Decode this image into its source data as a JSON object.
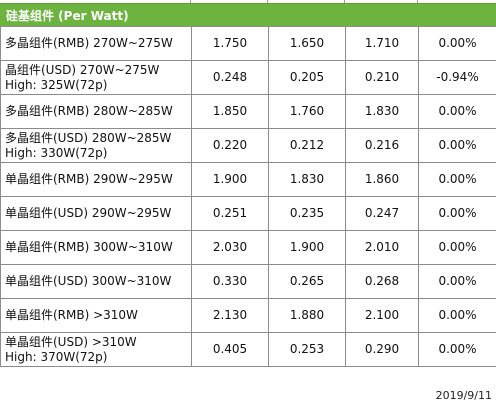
{
  "header": {
    "title": "硅基组件 (Per Watt)"
  },
  "rows": [
    {
      "name": "多晶组件(RMB) 270W~275W",
      "name2": "",
      "v1": "1.750",
      "v2": "1.650",
      "v3": "1.710",
      "change": "0.00%"
    },
    {
      "name": "晶组件(USD) 270W~275W",
      "name2": "High: 325W(72p)",
      "v1": "0.248",
      "v2": "0.205",
      "v3": "0.210",
      "change": "-0.94%"
    },
    {
      "name": "多晶组件(RMB) 280W~285W",
      "name2": "",
      "v1": "1.850",
      "v2": "1.760",
      "v3": "1.830",
      "change": "0.00%"
    },
    {
      "name": "多晶组件(USD) 280W~285W",
      "name2": "High: 330W(72p)",
      "v1": "0.220",
      "v2": "0.212",
      "v3": "0.216",
      "change": "0.00%"
    },
    {
      "name": "单晶组件(RMB) 290W~295W",
      "name2": "",
      "v1": "1.900",
      "v2": "1.830",
      "v3": "1.860",
      "change": "0.00%"
    },
    {
      "name": "单晶组件(USD) 290W~295W",
      "name2": "",
      "v1": "0.251",
      "v2": "0.235",
      "v3": "0.247",
      "change": "0.00%"
    },
    {
      "name": "单晶组件(RMB) 300W~310W",
      "name2": "",
      "v1": "2.030",
      "v2": "1.900",
      "v3": "2.010",
      "change": "0.00%"
    },
    {
      "name": "单晶组件(USD) 300W~310W",
      "name2": "",
      "v1": "0.330",
      "v2": "0.265",
      "v3": "0.268",
      "change": "0.00%"
    },
    {
      "name": "单晶组件(RMB) >310W",
      "name2": "",
      "v1": "2.130",
      "v2": "1.880",
      "v3": "2.100",
      "change": "0.00%"
    },
    {
      "name": "单晶组件(USD) >310W",
      "name2": "High: 370W(72p)",
      "v1": "0.405",
      "v2": "0.253",
      "v3": "0.290",
      "change": "0.00%"
    }
  ],
  "footer": {
    "date": "2019/9/11"
  },
  "colors": {
    "header_bg": "#6cb33f",
    "border": "#8c8c8c"
  }
}
